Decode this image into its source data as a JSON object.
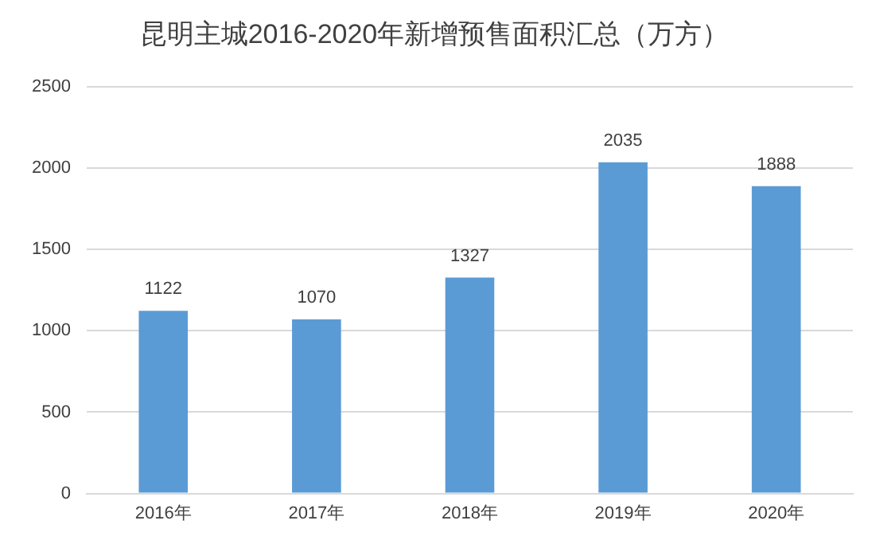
{
  "chart_data": {
    "type": "bar",
    "title": "昆明主城2016-2020年新增预售面积汇总（万方）",
    "categories": [
      "2016年",
      "2017年",
      "2018年",
      "2019年",
      "2020年"
    ],
    "values": [
      1122,
      1070,
      1327,
      2035,
      1888
    ],
    "color": "#5b9bd5",
    "ylim": [
      0,
      2500
    ],
    "yticks": [
      0,
      500,
      1000,
      1500,
      2000,
      2500
    ],
    "grid": "y",
    "data_labels": true,
    "legend": false
  }
}
